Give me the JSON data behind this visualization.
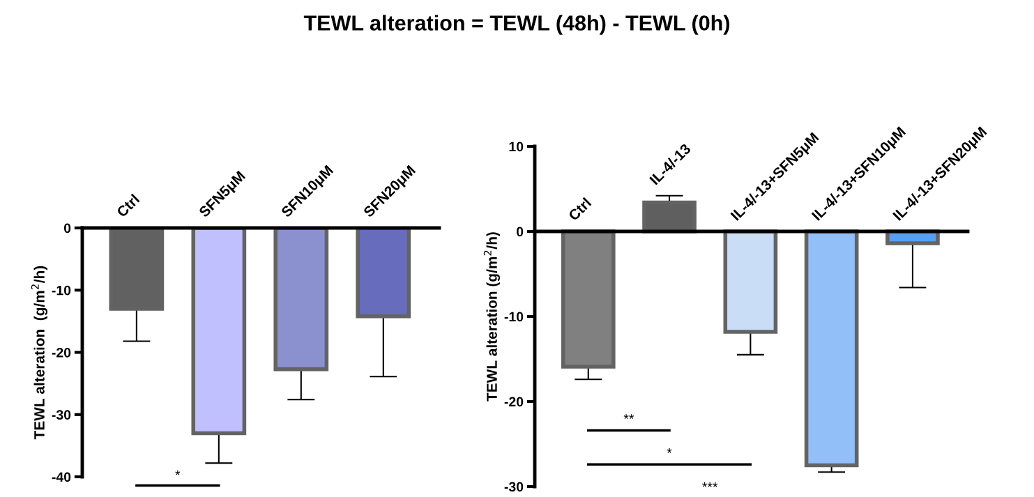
{
  "chart_data": [
    {
      "type": "bar",
      "title": "TEWL alteration = TEWL (48h) - TEWL (0h)",
      "ylabel": "TEWL alteration  (g/m$^{2}$/h)",
      "categories": [
        "Ctrl",
        "SFN5μM",
        "SFN10μM",
        "SFN20μM"
      ],
      "values": [
        -13.0,
        -33.0,
        -22.7,
        -14.2
      ],
      "colors": [
        "#616161",
        "#c0bfff",
        "#8b91cf",
        "#676cbd"
      ],
      "errors": [
        [
          -18.2,
          -13.0
        ],
        [
          -37.8,
          -33.0
        ],
        [
          -27.6,
          -22.7
        ],
        [
          -23.9,
          -14.2
        ]
      ],
      "ylim": [
        -40,
        0
      ],
      "yticks": [
        -40,
        -30,
        -20,
        -10,
        0
      ],
      "grid": false,
      "annotations": [
        "*"
      ]
    },
    {
      "type": "bar",
      "ylabel": "TEWL alteration (g/m$^{2}$/h)",
      "categories": [
        "Ctrl",
        "IL-4/-13",
        "IL-4/-13+SFN5μM",
        "IL-4/-13+SFN10μM",
        "IL-4/-13+SFN20μM"
      ],
      "values": [
        -15.9,
        3.4,
        -11.8,
        -27.5,
        -1.4
      ],
      "colors": [
        "#808080",
        "#5f5f5f",
        "#c9ddf7",
        "#92bff8",
        "#55a0f5"
      ],
      "errors": [
        [
          -17.4,
          -15.9
        ],
        [
          3.4,
          4.2
        ],
        [
          -14.5,
          -11.8
        ],
        [
          -28.3,
          -27.5
        ],
        [
          -6.6,
          -1.4
        ]
      ],
      "ylim": [
        -30,
        10
      ],
      "yticks": [
        -30,
        -20,
        -10,
        0,
        10
      ],
      "grid": false,
      "annotations": [
        "**",
        "*",
        "***"
      ]
    }
  ]
}
